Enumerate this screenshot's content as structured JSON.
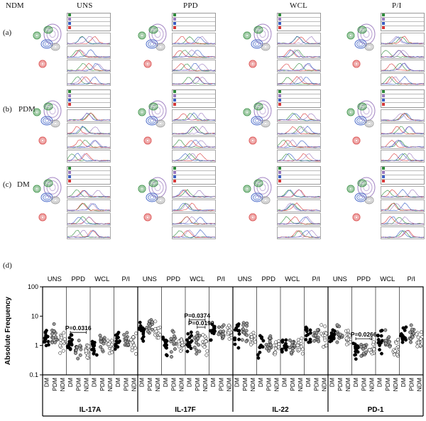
{
  "figure": {
    "conditions": [
      "UNS",
      "PPD",
      "WCL",
      "P/I"
    ],
    "rows": [
      {
        "label": "(a)",
        "group": "NDM"
      },
      {
        "label": "(b)",
        "group": "PDM"
      },
      {
        "label": "(c)",
        "group": "DM"
      }
    ],
    "panel_d_label": "(d)",
    "colors": {
      "green": "#2e8b3a",
      "blue": "#3b5fc4",
      "red": "#d83a3a",
      "purple": "#9c7bbf",
      "grey": "#9a9a9a"
    }
  },
  "chart_data": {
    "type": "scatter",
    "ylabel": "Absolute Frequency",
    "yscale": "log",
    "ylim": [
      0.1,
      100
    ],
    "yticks": [
      "0.1",
      "1",
      "10",
      "100"
    ],
    "stimulations": [
      "UNS",
      "PPD",
      "WCL",
      "P/I"
    ],
    "groups": [
      "DM",
      "PDM",
      "NDM"
    ],
    "markers": {
      "DM": "#000000",
      "PDM": "#9a9a9a",
      "NDM": "#ffffff"
    },
    "panels": [
      {
        "name": "IL-17A",
        "medians": [
          [
            1.6,
            2.0,
            1.3
          ],
          [
            1.2,
            0.8,
            0.6
          ],
          [
            0.9,
            1.1,
            1.0
          ],
          [
            1.4,
            1.5,
            1.2
          ]
        ],
        "annotations": [
          {
            "text": "P=0.0316",
            "stim": 1,
            "from": 0,
            "to": 2,
            "y": 2.8
          }
        ]
      },
      {
        "name": "IL-17F",
        "medians": [
          [
            3.5,
            5.0,
            3.0
          ],
          [
            1.0,
            1.3,
            1.1
          ],
          [
            1.5,
            1.3,
            1.0
          ],
          [
            2.7,
            3.2,
            2.5
          ]
        ],
        "annotations": [
          {
            "text": "P=0.0374",
            "stim": 2,
            "from": 0,
            "to": 2,
            "y": 7.5
          },
          {
            "text": "P=0.0190",
            "stim": 2,
            "from": 1,
            "to": 2,
            "y": 4.2
          }
        ]
      },
      {
        "name": "IL-22",
        "medians": [
          [
            2.5,
            3.0,
            2.0
          ],
          [
            1.0,
            1.2,
            0.8
          ],
          [
            0.8,
            1.0,
            0.9
          ],
          [
            2.3,
            2.5,
            2.0
          ]
        ],
        "annotations": []
      },
      {
        "name": "PD-1",
        "medians": [
          [
            2.0,
            2.5,
            2.0
          ],
          [
            0.7,
            0.8,
            0.9
          ],
          [
            1.5,
            1.3,
            0.9
          ],
          [
            2.5,
            2.2,
            1.8
          ]
        ],
        "annotations": [
          {
            "text": "P=0.0266",
            "stim": 1,
            "from": 0,
            "to": 2,
            "y": 1.7
          }
        ]
      }
    ]
  }
}
